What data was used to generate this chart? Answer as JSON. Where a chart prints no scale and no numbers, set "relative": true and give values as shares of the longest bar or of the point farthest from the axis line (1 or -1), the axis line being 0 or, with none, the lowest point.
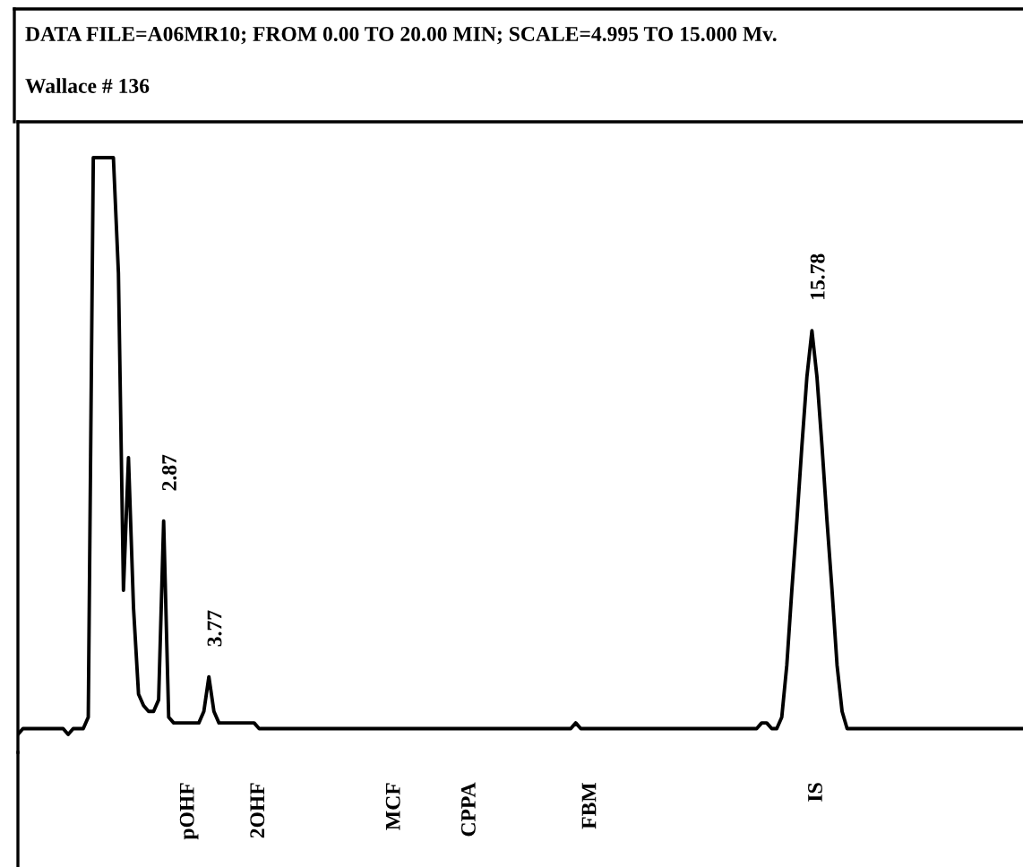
{
  "chart_data": {
    "type": "line",
    "relative": true,
    "title": "DATA FILE=A06MR10; FROM 0.00 TO 20.00 MIN; SCALE=4.995 TO 15.000 Mv.",
    "subtitle": "Wallace # 136",
    "grid": false,
    "legend": false,
    "marker": "none",
    "line_style": "solid",
    "categories": [
      null,
      null,
      null,
      null,
      null,
      null,
      null,
      null,
      null,
      null,
      null,
      null,
      null,
      null,
      null,
      null,
      null,
      null,
      null,
      null,
      null,
      null,
      null,
      null,
      null,
      null,
      null,
      null,
      null,
      null,
      null,
      null,
      null,
      null,
      "pOHF",
      null,
      null,
      null,
      null,
      null,
      null,
      null,
      null,
      null,
      null,
      null,
      null,
      null,
      "2OHF",
      null,
      null,
      null,
      null,
      null,
      null,
      null,
      null,
      null,
      null,
      null,
      null,
      null,
      null,
      null,
      null,
      null,
      null,
      null,
      null,
      null,
      null,
      null,
      null,
      null,
      null,
      "MCF",
      null,
      null,
      null,
      null,
      null,
      null,
      null,
      null,
      null,
      null,
      null,
      null,
      null,
      null,
      "CPPA",
      null,
      null,
      null,
      null,
      null,
      null,
      null,
      null,
      null,
      null,
      null,
      null,
      null,
      null,
      null,
      null,
      null,
      null,
      null,
      null,
      null,
      null,
      null,
      "FBM",
      null,
      null,
      null,
      null,
      null,
      null,
      null,
      null,
      null,
      null,
      null,
      null,
      null,
      null,
      null,
      null,
      null,
      null,
      null,
      null,
      null,
      null,
      null,
      null,
      null,
      null,
      null,
      null,
      null,
      null,
      null,
      null,
      null,
      null,
      null,
      null,
      null,
      null,
      null,
      null,
      null,
      null,
      null,
      null,
      "IS",
      null,
      null,
      null,
      null,
      null,
      null,
      null,
      null,
      null,
      null,
      null,
      null,
      null,
      null,
      null,
      null,
      null,
      null,
      null,
      null,
      null,
      null,
      null,
      null,
      null,
      null,
      null,
      null,
      null,
      null,
      null,
      null,
      null,
      null,
      null,
      null,
      null,
      null,
      null,
      null,
      null
    ],
    "series": [
      {
        "color": "#000000",
        "values": [
          0,
          0.01,
          0.01,
          0.01,
          0.01,
          0.01,
          0.01,
          0.01,
          0.01,
          0.01,
          0,
          0.01,
          0.01,
          0.01,
          0.03,
          1,
          1,
          1,
          1,
          1,
          0.8,
          0.25,
          0.48,
          0.22,
          0.07,
          0.05,
          0.04,
          0.04,
          0.06,
          0.37,
          0.03,
          0.02,
          0.02,
          0.02,
          0.02,
          0.02,
          0.02,
          0.04,
          0.1,
          0.04,
          0.02,
          0.02,
          0.02,
          0.02,
          0.02,
          0.02,
          0.02,
          0.02,
          0.01,
          0.01,
          0.01,
          0.01,
          0.01,
          0.01,
          0.01,
          0.01,
          0.01,
          0.01,
          0.01,
          0.01,
          0.01,
          0.01,
          0.01,
          0.01,
          0.01,
          0.01,
          0.01,
          0.01,
          0.01,
          0.01,
          0.01,
          0.01,
          0.01,
          0.01,
          0.01,
          0.01,
          0.01,
          0.01,
          0.01,
          0.01,
          0.01,
          0.01,
          0.01,
          0.01,
          0.01,
          0.01,
          0.01,
          0.01,
          0.01,
          0.01,
          0.01,
          0.01,
          0.01,
          0.01,
          0.01,
          0.01,
          0.01,
          0.01,
          0.01,
          0.01,
          0.01,
          0.01,
          0.01,
          0.01,
          0.01,
          0.01,
          0.01,
          0.01,
          0.01,
          0.01,
          0.01,
          0.02,
          0.01,
          0.01,
          0.01,
          0.01,
          0.01,
          0.01,
          0.01,
          0.01,
          0.01,
          0.01,
          0.01,
          0.01,
          0.01,
          0.01,
          0.01,
          0.01,
          0.01,
          0.01,
          0.01,
          0.01,
          0.01,
          0.01,
          0.01,
          0.01,
          0.01,
          0.01,
          0.01,
          0.01,
          0.01,
          0.01,
          0.01,
          0.01,
          0.01,
          0.01,
          0.01,
          0.01,
          0.02,
          0.02,
          0.01,
          0.01,
          0.03,
          0.12,
          0.25,
          0.37,
          0.5,
          0.62,
          0.7,
          0.62,
          0.5,
          0.37,
          0.25,
          0.12,
          0.04,
          0.01,
          0.01,
          0.01,
          0.01,
          0.01,
          0.01,
          0.01,
          0.01,
          0.01,
          0.01,
          0.01,
          0.01,
          0.01,
          0.01,
          0.01,
          0.01,
          0.01,
          0.01,
          0.01,
          0.01,
          0.01,
          0.01,
          0.01,
          0.01,
          0.01,
          0.01,
          0.01,
          0.01,
          0.01,
          0.01,
          0.01,
          0.01,
          0.01,
          0.01,
          0.01,
          0.01
        ]
      }
    ],
    "annotations": [
      {
        "text": "2.87",
        "y": 0.37
      },
      {
        "text": "3.77",
        "y": 0.1
      },
      {
        "text": "15.78",
        "y": 0.7
      }
    ]
  }
}
